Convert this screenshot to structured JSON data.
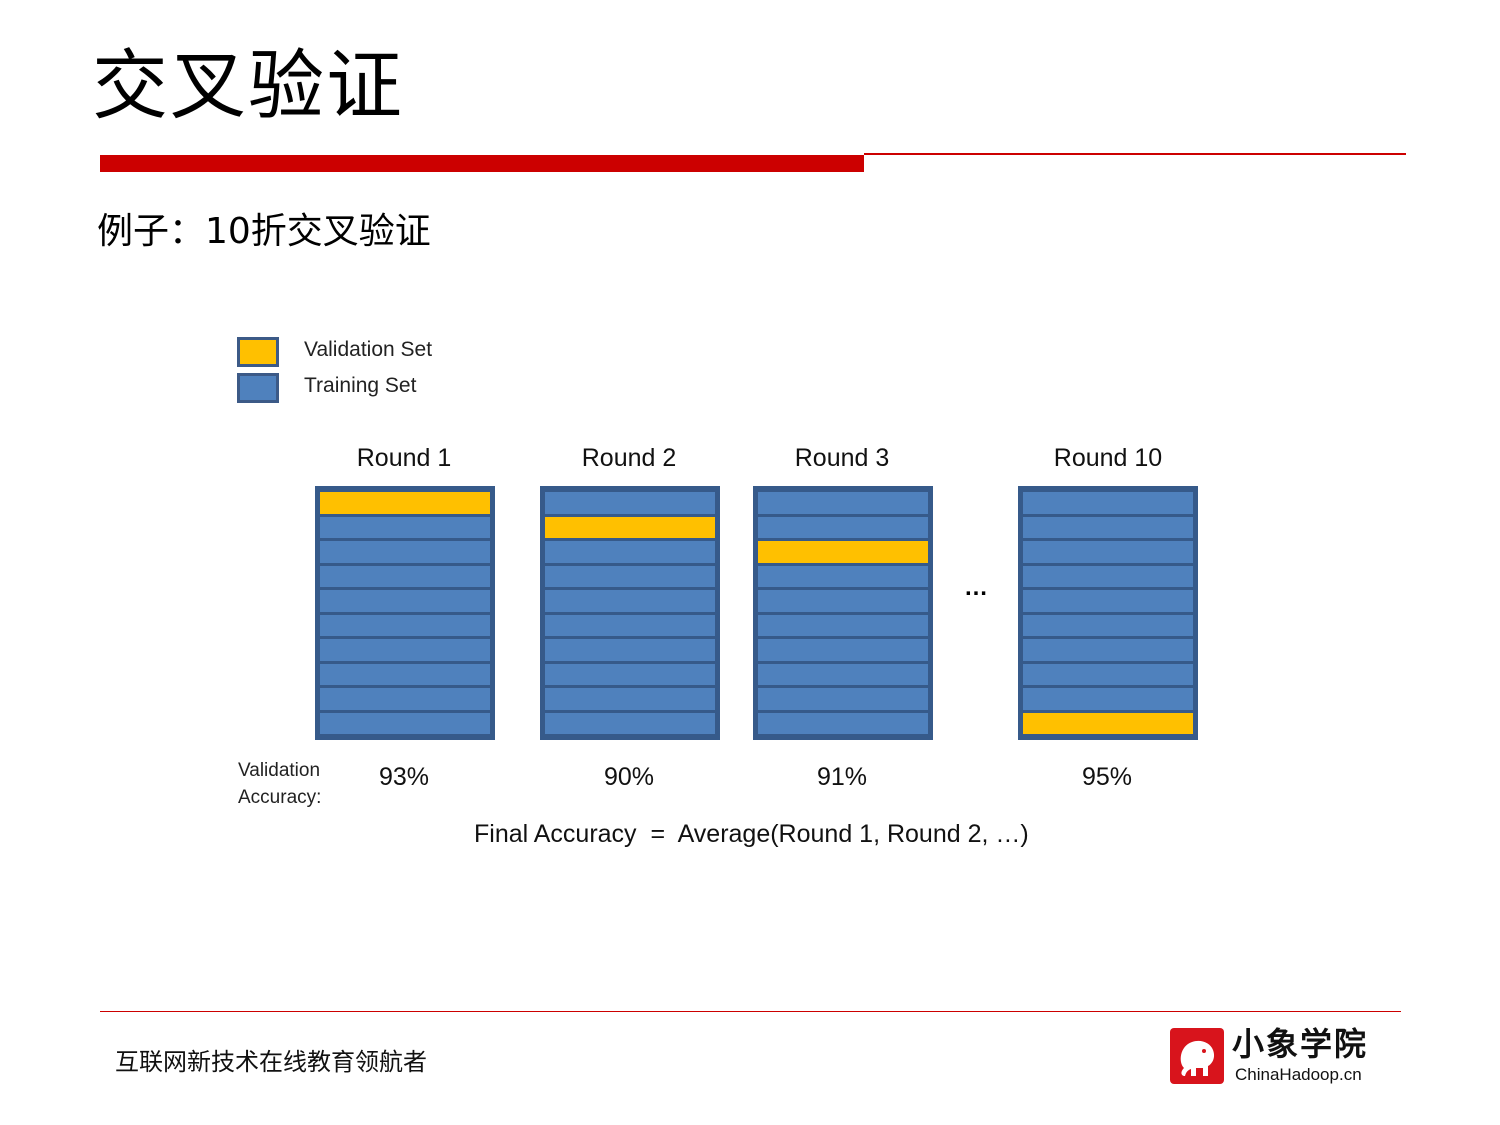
{
  "title": "交叉验证",
  "subtitle": "例子：10折交叉验证",
  "legend": [
    {
      "label": "Validation Set",
      "color": "#ffc000"
    },
    {
      "label": "Training Set",
      "color": "#4f81bd"
    }
  ],
  "colors": {
    "accent": "#cc0000",
    "training": "#4f81bd",
    "validation": "#ffc000",
    "border": "#365a8a"
  },
  "folds": 10,
  "rounds": [
    {
      "title": "Round 1",
      "validation_fold": 1,
      "accuracy": "93%"
    },
    {
      "title": "Round 2",
      "validation_fold": 2,
      "accuracy": "90%"
    },
    {
      "title": "Round 3",
      "validation_fold": 3,
      "accuracy": "91%"
    },
    {
      "title": "Round 10",
      "validation_fold": 10,
      "accuracy": "95%"
    }
  ],
  "ellipsis": "…",
  "accuracy_label_line1": "Validation",
  "accuracy_label_line2": "Accuracy:",
  "final_formula": "Final Accuracy  =  Average(Round 1, Round 2, …)",
  "footer": {
    "slogan": "互联网新技术在线教育领航者",
    "logo_cn": "小象学院",
    "logo_en": "ChinaHadoop.cn",
    "logo_icon": "elephant-icon"
  }
}
